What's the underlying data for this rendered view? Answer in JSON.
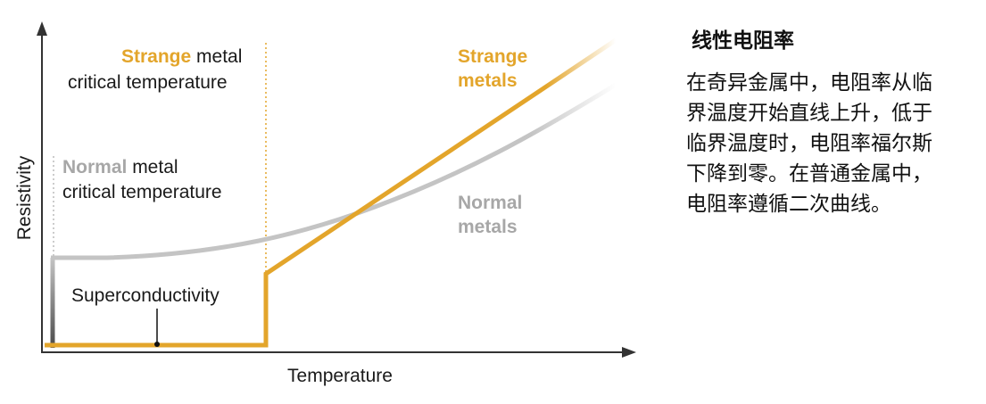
{
  "diagram": {
    "y_axis_label": "Resistivity",
    "x_axis_label": "Temperature",
    "strange_critical": {
      "highlight": "Strange",
      "rest": " metal",
      "line2": "critical temperature"
    },
    "normal_critical": {
      "highlight": "Normal",
      "rest": " metal",
      "line2": "critical temperature"
    },
    "strange_curve_label": [
      "Strange",
      "metals"
    ],
    "normal_curve_label": [
      "Normal",
      "metals"
    ],
    "superconductivity_label": "Superconductivity"
  },
  "sidebar": {
    "title": "线性电阻率",
    "body_lines": [
      "在奇异金属中，电阻率从临",
      "界温度开始直线上升，低于",
      "临界温度时，电阻率福尔斯",
      "下降到零。在普通金属中，",
      "电阻率遵循二次曲线。"
    ]
  }
}
